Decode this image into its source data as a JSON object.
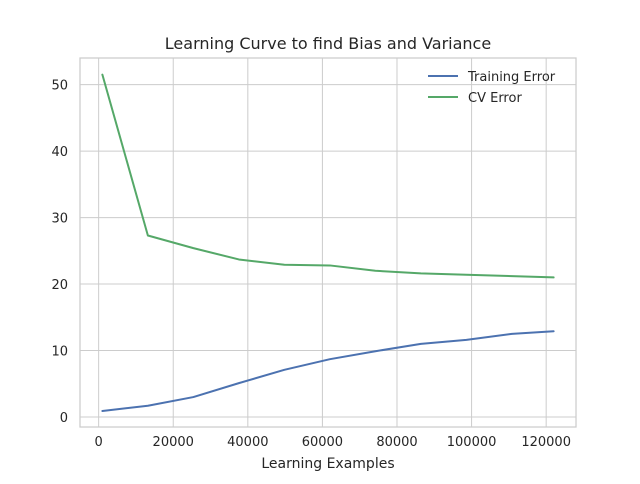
{
  "chart_data": {
    "type": "line",
    "title": "Learning Curve to find Bias and Variance",
    "xlabel": "Learning Examples",
    "ylabel": "",
    "xlim": [
      -5000,
      128000
    ],
    "ylim": [
      -1.5,
      54
    ],
    "xticks": [
      0,
      20000,
      40000,
      60000,
      80000,
      100000,
      120000
    ],
    "yticks": [
      0,
      10,
      20,
      30,
      40,
      50
    ],
    "grid": true,
    "legend_position": "top-right",
    "x": [
      1000,
      13200,
      25400,
      37600,
      49800,
      62000,
      74200,
      86400,
      98600,
      110800,
      122000
    ],
    "series": [
      {
        "name": "Training Error",
        "color": "#4c72b0",
        "values": [
          0.9,
          1.7,
          3.0,
          5.1,
          7.1,
          8.7,
          9.9,
          11.0,
          11.6,
          12.5,
          12.9
        ]
      },
      {
        "name": "CV Error",
        "color": "#55a868",
        "values": [
          51.5,
          27.3,
          25.4,
          23.7,
          22.9,
          22.8,
          22.0,
          21.6,
          21.4,
          21.2,
          21.0
        ]
      }
    ]
  }
}
